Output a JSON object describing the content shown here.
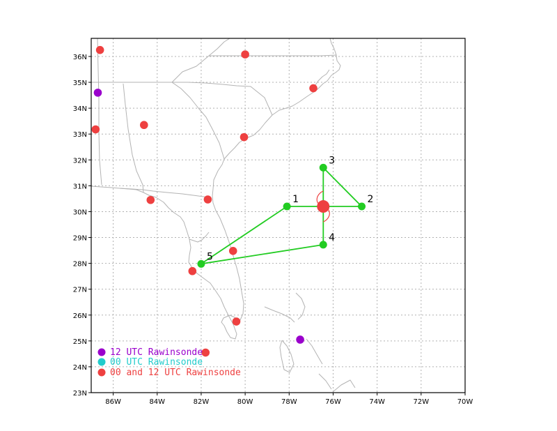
{
  "map": {
    "lon_range": [
      -87,
      -70
    ],
    "lat_range": [
      23,
      36.7
    ],
    "lon_ticks": [
      {
        "lon": -86,
        "label": "86W"
      },
      {
        "lon": -84,
        "label": "84W"
      },
      {
        "lon": -82,
        "label": "82W"
      },
      {
        "lon": -80,
        "label": "80W"
      },
      {
        "lon": -78,
        "label": "78W"
      },
      {
        "lon": -76,
        "label": "76W"
      },
      {
        "lon": -74,
        "label": "74W"
      },
      {
        "lon": -72,
        "label": "72W"
      },
      {
        "lon": -70,
        "label": "70W"
      }
    ],
    "lat_ticks": [
      {
        "lat": 23,
        "label": "23N"
      },
      {
        "lat": 24,
        "label": "24N"
      },
      {
        "lat": 25,
        "label": "25N"
      },
      {
        "lat": 26,
        "label": "26N"
      },
      {
        "lat": 27,
        "label": "27N"
      },
      {
        "lat": 28,
        "label": "28N"
      },
      {
        "lat": 29,
        "label": "29N"
      },
      {
        "lat": 30,
        "label": "30N"
      },
      {
        "lat": 31,
        "label": "31N"
      },
      {
        "lat": 32,
        "label": "32N"
      },
      {
        "lat": 33,
        "label": "33N"
      },
      {
        "lat": 34,
        "label": "34N"
      },
      {
        "lat": 35,
        "label": "35N"
      },
      {
        "lat": 36,
        "label": "36N"
      }
    ],
    "colors": {
      "grid": "#b0b0b0",
      "coast": "#b3b3b3",
      "track": "#22cc22",
      "rawinsonde_12": "#9a00cc",
      "rawinsonde_00": "#22cccc",
      "rawinsonde_both": "#ee4040",
      "storm": "#ee4040"
    }
  },
  "storm_center": {
    "lon": -76.45,
    "lat": 30.2,
    "icon": "hurricane-symbol-icon"
  },
  "flight_track": [
    {
      "label": "1",
      "lon": -78.1,
      "lat": 30.2
    },
    {
      "label": "2",
      "lon": -74.7,
      "lat": 30.2
    },
    {
      "label": "3",
      "lon": -76.45,
      "lat": 31.7
    },
    {
      "label": "4",
      "lon": -76.45,
      "lat": 28.72
    },
    {
      "label": "5",
      "lon": -82.0,
      "lat": 27.98
    }
  ],
  "track_order": [
    4,
    0,
    1,
    2,
    3,
    4
  ],
  "stations": [
    {
      "type": "both",
      "lon": -86.6,
      "lat": 36.25
    },
    {
      "type": "both",
      "lon": -80.0,
      "lat": 36.08
    },
    {
      "type": "12",
      "lon": -86.7,
      "lat": 34.6
    },
    {
      "type": "both",
      "lon": -76.9,
      "lat": 34.77
    },
    {
      "type": "both",
      "lon": -86.8,
      "lat": 33.18
    },
    {
      "type": "both",
      "lon": -84.6,
      "lat": 33.35
    },
    {
      "type": "both",
      "lon": -80.05,
      "lat": 32.88
    },
    {
      "type": "both",
      "lon": -84.3,
      "lat": 30.45
    },
    {
      "type": "both",
      "lon": -81.7,
      "lat": 30.47
    },
    {
      "type": "both",
      "lon": -80.55,
      "lat": 28.48
    },
    {
      "type": "both",
      "lon": -82.4,
      "lat": 27.7
    },
    {
      "type": "both",
      "lon": -80.4,
      "lat": 25.75
    },
    {
      "type": "12",
      "lon": -77.5,
      "lat": 25.05
    },
    {
      "type": "both",
      "lon": -81.8,
      "lat": 24.55
    }
  ],
  "legend": [
    {
      "key": "12",
      "label": "12 UTC Rawinsonde"
    },
    {
      "key": "00",
      "label": "00 UTC Rawinsonde"
    },
    {
      "key": "both",
      "label": "00 and 12 UTC Rawinsonde"
    }
  ]
}
